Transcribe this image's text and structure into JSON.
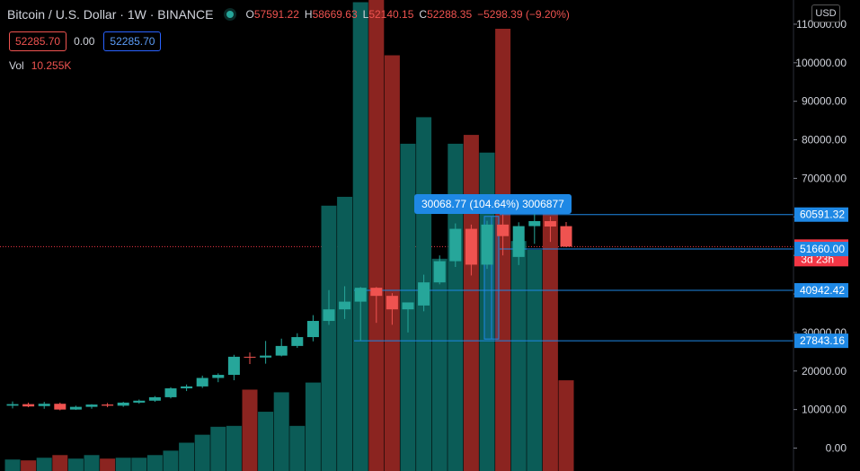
{
  "header": {
    "symbol_title": "Bitcoin / U.S. Dollar · 1W · BINANCE",
    "ohlc": {
      "o_label": "O",
      "o_value": "57591.22",
      "h_label": "H",
      "h_value": "58669.63",
      "l_label": "L",
      "l_value": "52140.15",
      "c_label": "C",
      "c_value": "52288.35",
      "change": "−5298.39 (−9.20%)"
    },
    "sell_price": "52285.70",
    "spread": "0.00",
    "buy_price": "52285.70",
    "volume_label": "Vol",
    "volume_value": "10.255K",
    "currency": "USD"
  },
  "measure": {
    "label": "30068.77 (104.64%) 3006877"
  },
  "price_axis": {
    "ticks": [
      "110000.00",
      "100000.00",
      "90000.00",
      "80000.00",
      "70000.00",
      "60000.00",
      "50000.00",
      "40000.00",
      "30000.00",
      "20000.00",
      "10000.00",
      "0.00"
    ],
    "tags": [
      {
        "text": "60591.32",
        "price": 60591.32,
        "color": "#1e88e5"
      },
      {
        "text": "52288.35",
        "price": 52288.35,
        "color": "#f23645",
        "sub": "3d 23h"
      },
      {
        "text": "51660.00",
        "price": 51660.0,
        "color": "#1e88e5"
      },
      {
        "text": "40942.42",
        "price": 40942.42,
        "color": "#1e88e5"
      },
      {
        "text": "27843.16",
        "price": 27843.16,
        "color": "#1e88e5"
      }
    ]
  },
  "colors": {
    "up": "#26a69a",
    "down": "#ef5350",
    "vol_up": "#0b5c57",
    "vol_down": "#8b2420",
    "line": "#1e88e5",
    "current_price_line": "#f23645"
  },
  "chart_data": {
    "type": "candlestick",
    "title": "Bitcoin / U.S. Dollar",
    "interval": "1W",
    "exchange": "BINANCE",
    "ylim": [
      0,
      110000
    ],
    "candles": [
      {
        "o": 11000,
        "h": 12100,
        "l": 10300,
        "c": 11400,
        "v": 1300
      },
      {
        "o": 11400,
        "h": 11800,
        "l": 10600,
        "c": 10800,
        "v": 1200
      },
      {
        "o": 10900,
        "h": 12000,
        "l": 10200,
        "c": 11500,
        "v": 1500
      },
      {
        "o": 11500,
        "h": 11800,
        "l": 9800,
        "c": 10000,
        "v": 1800
      },
      {
        "o": 10000,
        "h": 11000,
        "l": 9900,
        "c": 10700,
        "v": 1400
      },
      {
        "o": 10700,
        "h": 11400,
        "l": 10200,
        "c": 11300,
        "v": 1800
      },
      {
        "o": 11300,
        "h": 11700,
        "l": 10600,
        "c": 11000,
        "v": 1400
      },
      {
        "o": 11000,
        "h": 12000,
        "l": 10700,
        "c": 11800,
        "v": 1500
      },
      {
        "o": 11800,
        "h": 12600,
        "l": 11500,
        "c": 12300,
        "v": 1500
      },
      {
        "o": 12300,
        "h": 13500,
        "l": 12000,
        "c": 13200,
        "v": 1800
      },
      {
        "o": 13200,
        "h": 15800,
        "l": 12900,
        "c": 15500,
        "v": 2300
      },
      {
        "o": 15500,
        "h": 16500,
        "l": 14800,
        "c": 16000,
        "v": 3200
      },
      {
        "o": 16000,
        "h": 18800,
        "l": 15600,
        "c": 18200,
        "v": 4100
      },
      {
        "o": 18200,
        "h": 19400,
        "l": 17100,
        "c": 19000,
        "v": 5000
      },
      {
        "o": 19000,
        "h": 24200,
        "l": 17600,
        "c": 23700,
        "v": 5100
      },
      {
        "o": 23700,
        "h": 24800,
        "l": 21800,
        "c": 23500,
        "v": 9200
      },
      {
        "o": 23500,
        "h": 27800,
        "l": 21900,
        "c": 24000,
        "v": 6700
      },
      {
        "o": 24000,
        "h": 28400,
        "l": 23800,
        "c": 26500,
        "v": 8900
      },
      {
        "o": 26500,
        "h": 29800,
        "l": 26000,
        "c": 28800,
        "v": 5100
      },
      {
        "o": 28800,
        "h": 34500,
        "l": 27700,
        "c": 33000,
        "v": 10000
      },
      {
        "o": 33000,
        "h": 41000,
        "l": 32000,
        "c": 36000,
        "v": 30000
      },
      {
        "o": 36000,
        "h": 42000,
        "l": 33500,
        "c": 38000,
        "v": 31000
      },
      {
        "o": 38000,
        "h": 41800,
        "l": 27800,
        "c": 41600,
        "v": 53000
      },
      {
        "o": 41600,
        "h": 41800,
        "l": 32500,
        "c": 39500,
        "v": 55000
      },
      {
        "o": 39500,
        "h": 40200,
        "l": 32000,
        "c": 36000,
        "v": 47000
      },
      {
        "o": 36000,
        "h": 37000,
        "l": 30000,
        "c": 37800,
        "v": 37000
      },
      {
        "o": 37000,
        "h": 45000,
        "l": 35500,
        "c": 43000,
        "v": 40000
      },
      {
        "o": 43000,
        "h": 50000,
        "l": 42500,
        "c": 48500,
        "v": 24000
      },
      {
        "o": 48500,
        "h": 58300,
        "l": 47000,
        "c": 56900,
        "v": 37000
      },
      {
        "o": 56900,
        "h": 58000,
        "l": 44800,
        "c": 47600,
        "v": 38000
      },
      {
        "o": 47600,
        "h": 59000,
        "l": 46500,
        "c": 58000,
        "v": 36000
      },
      {
        "o": 58000,
        "h": 60600,
        "l": 50000,
        "c": 55000,
        "v": 50000
      },
      {
        "o": 49600,
        "h": 58600,
        "l": 47500,
        "c": 57600,
        "v": 26000
      },
      {
        "o": 57600,
        "h": 61800,
        "l": 53000,
        "c": 58900,
        "v": 25000
      },
      {
        "o": 58900,
        "h": 60100,
        "l": 53500,
        "c": 57500,
        "v": 31000
      },
      {
        "o": 57591.22,
        "h": 58669.63,
        "l": 52140.15,
        "c": 52288.35,
        "v": 10255
      }
    ],
    "horizontal_lines": [
      60591.32,
      51660.0,
      40942.42,
      27843.16
    ],
    "current_price": 52288.35
  }
}
